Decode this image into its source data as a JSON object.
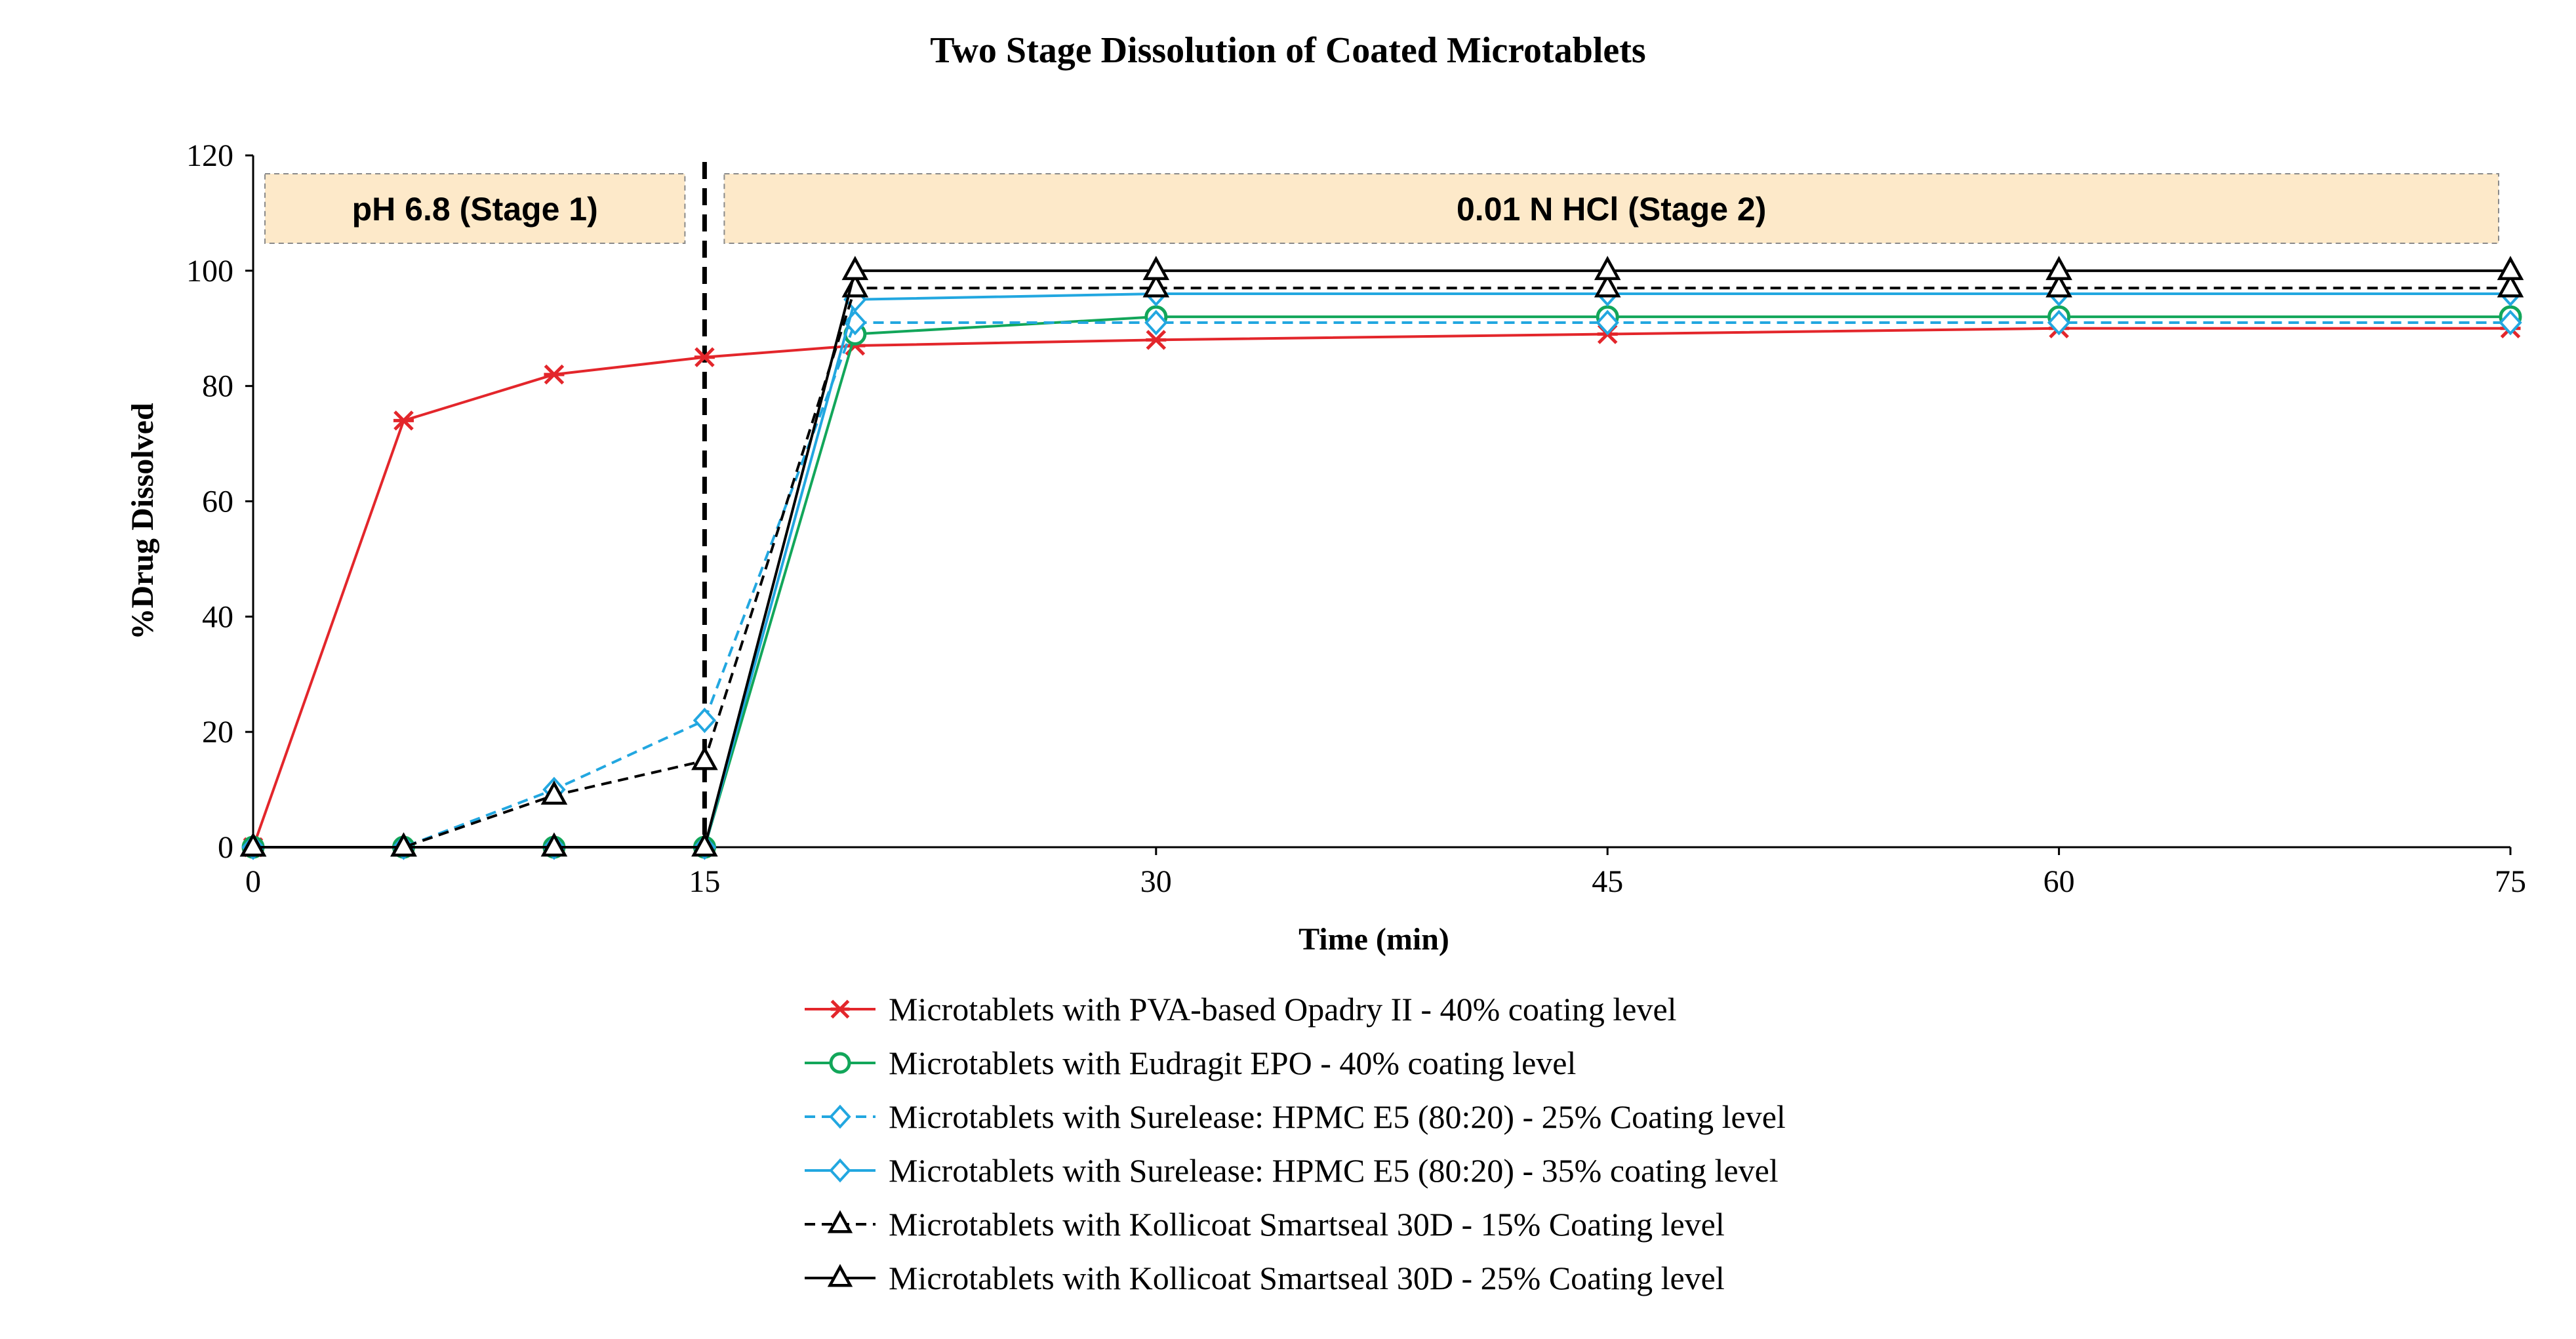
{
  "chart_data": {
    "type": "line",
    "title": "Two Stage Dissolution of Coated Microtablets",
    "xlabel": "Time (min)",
    "ylabel": "%Drug Dissolved",
    "xlim": [
      0,
      75
    ],
    "ylim": [
      0,
      120
    ],
    "x_ticks": [
      0,
      15,
      30,
      45,
      60,
      75
    ],
    "y_ticks": [
      0,
      20,
      40,
      60,
      80,
      100,
      120
    ],
    "grid": false,
    "legend_position": "bottom",
    "stage_divider_x": 15,
    "stage_labels": [
      {
        "label": "pH 6.8 (Stage 1)",
        "x_range": [
          0,
          15
        ]
      },
      {
        "label": "0.01 N HCl (Stage 2)",
        "x_range": [
          15,
          75
        ]
      }
    ],
    "stage_fill_color": "#fde9c9",
    "series": [
      {
        "name": "Microtablets with PVA-based Opadry II - 40% coating level",
        "color": "#e3262b",
        "dashed": false,
        "marker": "star",
        "x": [
          0,
          5,
          10,
          15,
          20,
          30,
          45,
          60,
          75
        ],
        "y": [
          0,
          74,
          82,
          85,
          87,
          88,
          89,
          90,
          90
        ]
      },
      {
        "name": "Microtablets with Eudragit EPO - 40% coating level",
        "color": "#12a65a",
        "dashed": false,
        "marker": "circle",
        "x": [
          0,
          5,
          10,
          15,
          20,
          30,
          45,
          60,
          75
        ],
        "y": [
          0,
          0,
          0,
          0,
          89,
          92,
          92,
          92,
          92
        ]
      },
      {
        "name": "Microtablets with Surelease: HPMC E5 (80:20) - 25% Coating level",
        "color": "#22a7e0",
        "dashed": true,
        "marker": "diamond",
        "x": [
          0,
          5,
          10,
          15,
          20,
          30,
          45,
          60,
          75
        ],
        "y": [
          0,
          0,
          10,
          22,
          91,
          91,
          91,
          91,
          91
        ]
      },
      {
        "name": "Microtablets with Surelease: HPMC E5 (80:20) - 35% coating level",
        "color": "#22a7e0",
        "dashed": false,
        "marker": "diamond",
        "x": [
          0,
          5,
          10,
          15,
          20,
          30,
          45,
          60,
          75
        ],
        "y": [
          0,
          0,
          0,
          0,
          95,
          96,
          96,
          96,
          96
        ]
      },
      {
        "name": "Microtablets with Kollicoat Smartseal 30D - 15% Coating level",
        "color": "#000000",
        "dashed": true,
        "marker": "triangle",
        "x": [
          0,
          5,
          10,
          15,
          20,
          30,
          45,
          60,
          75
        ],
        "y": [
          0,
          0,
          9,
          15,
          97,
          97,
          97,
          97,
          97
        ]
      },
      {
        "name": "Microtablets with Kollicoat Smartseal 30D - 25% Coating level",
        "color": "#000000",
        "dashed": false,
        "marker": "triangle",
        "x": [
          0,
          5,
          10,
          15,
          20,
          30,
          45,
          60,
          75
        ],
        "y": [
          0,
          0,
          0,
          0,
          100,
          100,
          100,
          100,
          100
        ]
      }
    ]
  }
}
